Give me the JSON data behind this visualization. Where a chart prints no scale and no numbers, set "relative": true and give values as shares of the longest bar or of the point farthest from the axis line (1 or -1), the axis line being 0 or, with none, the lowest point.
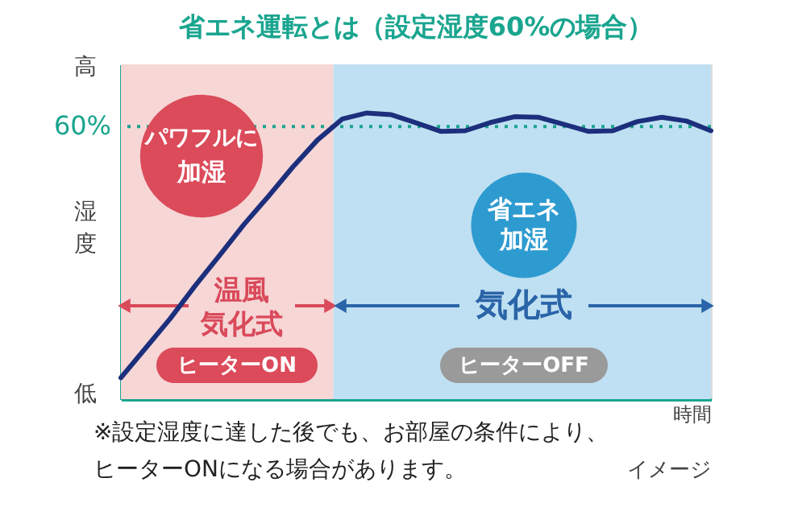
{
  "chart_data": {
    "type": "line",
    "title": "省エネ運転とは（設定湿度60%の場合）",
    "ylabel": "湿度",
    "xlabel": "時間",
    "relative": true,
    "categories": [
      null,
      null,
      null,
      null,
      null,
      null,
      null,
      null,
      null,
      null,
      null,
      null,
      null,
      null,
      null,
      null,
      null,
      null,
      null,
      null,
      null,
      null,
      null,
      null,
      null
    ],
    "series": [
      {
        "color": "#1c2f7c",
        "values": [
          0.075,
          0.178,
          0.281,
          0.394,
          0.501,
          0.61,
          0.709,
          0.812,
          0.906,
          0.979,
          1,
          0.994,
          0.966,
          0.936,
          0.938,
          0.966,
          0.987,
          0.985,
          0.961,
          0.936,
          0.938,
          0.97,
          0.985,
          0.972,
          0.938
        ]
      }
    ],
    "ref_lines": [
      {
        "axis": "y",
        "value": 0.953,
        "color": "#1aa58f",
        "line_style": "dotted"
      }
    ],
    "annotations": [
      "パワフルに",
      "加湿",
      "省エネ",
      "加湿",
      "ヒーターON",
      "ヒーターOFF",
      "高",
      "低",
      "※設定湿度に達した後でも、お部屋の条件により、",
      "ヒーターONになる場合があります。",
      "イメージ",
      "温風",
      "気化式",
      "気化式",
      "60%"
    ]
  }
}
